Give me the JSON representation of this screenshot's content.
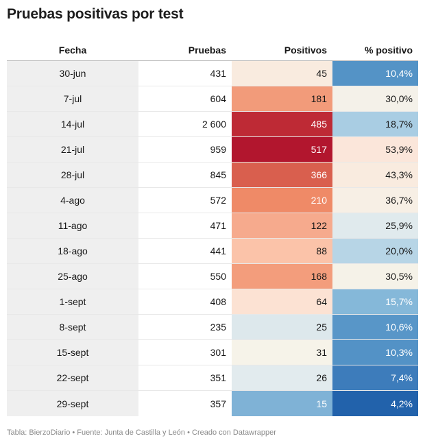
{
  "title": "Pruebas positivas por test",
  "headers": {
    "fecha": "Fecha",
    "pruebas": "Pruebas",
    "positivos": "Positivos",
    "pct": "% positivo"
  },
  "footer": "Tabla: BierzoDiario • Fuente: Junta de Castilla y León • Creado con Datawrapper",
  "chart_data": {
    "type": "table",
    "columns": [
      "Fecha",
      "Pruebas",
      "Positivos",
      "% positivo"
    ],
    "rows": [
      {
        "fecha": "30-jun",
        "pruebas": "431",
        "positivos": "45",
        "pct": "10,4%",
        "pos_color": "#f9ebdf",
        "pct_color": "#5493c6"
      },
      {
        "fecha": "7-jul",
        "pruebas": "604",
        "positivos": "181",
        "pct": "30,0%",
        "pos_color": "#f29b7a",
        "pct_color": "#f4f1e9"
      },
      {
        "fecha": "14-jul",
        "pruebas": "2 600",
        "positivos": "485",
        "pct": "18,7%",
        "pos_color": "#be2a35",
        "pct_color": "#a9cde3"
      },
      {
        "fecha": "21-jul",
        "pruebas": "959",
        "positivos": "517",
        "pct": "53,9%",
        "pos_color": "#b2162e",
        "pct_color": "#fbe6da"
      },
      {
        "fecha": "28-jul",
        "pruebas": "845",
        "positivos": "366",
        "pct": "43,3%",
        "pos_color": "#d95f4e",
        "pct_color": "#f9ebdf"
      },
      {
        "fecha": "4-ago",
        "pruebas": "572",
        "positivos": "210",
        "pct": "36,7%",
        "pos_color": "#ef8a67",
        "pct_color": "#f7efe5"
      },
      {
        "fecha": "11-ago",
        "pruebas": "471",
        "positivos": "122",
        "pct": "25,9%",
        "pos_color": "#f6aa8d",
        "pct_color": "#e0eaed"
      },
      {
        "fecha": "18-ago",
        "pruebas": "441",
        "positivos": "88",
        "pct": "20,0%",
        "pos_color": "#fbc3a9",
        "pct_color": "#b7d5e6"
      },
      {
        "fecha": "25-ago",
        "pruebas": "550",
        "positivos": "168",
        "pct": "30,5%",
        "pos_color": "#f39d7c",
        "pct_color": "#f5f2e8"
      },
      {
        "fecha": "1-sept",
        "pruebas": "408",
        "positivos": "64",
        "pct": "15,7%",
        "pos_color": "#fce2d3",
        "pct_color": "#85b8d9"
      },
      {
        "fecha": "8-sept",
        "pruebas": "235",
        "positivos": "25",
        "pct": "10,6%",
        "pos_color": "#dde8ec",
        "pct_color": "#5896c8"
      },
      {
        "fecha": "15-sept",
        "pruebas": "301",
        "positivos": "31",
        "pct": "10,3%",
        "pos_color": "#f6f3e9",
        "pct_color": "#5392c6"
      },
      {
        "fecha": "22-sept",
        "pruebas": "351",
        "positivos": "26",
        "pct": "7,4%",
        "pos_color": "#e2ebee",
        "pct_color": "#3d7cbb"
      },
      {
        "fecha": "29-sept",
        "pruebas": "357",
        "positivos": "15",
        "pct": "4,2%",
        "pos_color": "#7fb2d6",
        "pct_color": "#2262ab"
      }
    ]
  }
}
